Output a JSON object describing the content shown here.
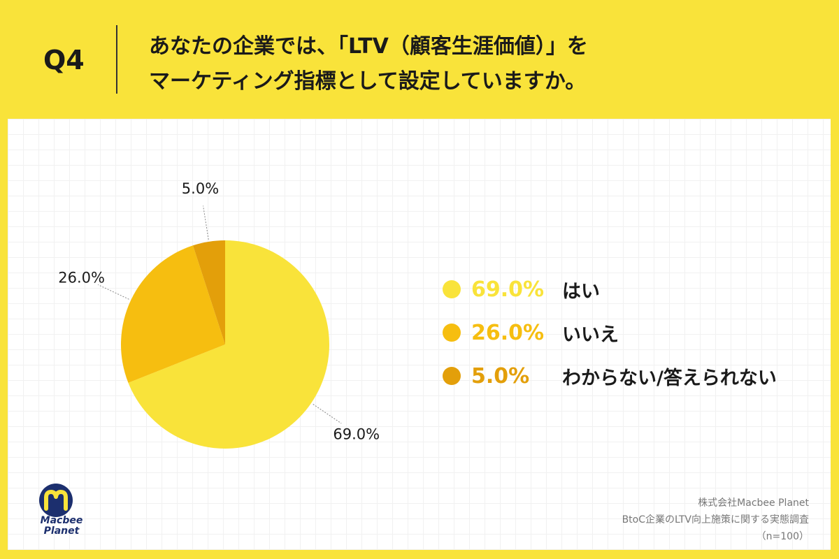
{
  "header": {
    "q_label": "Q4",
    "question_line1": "あなたの企業では、「LTV（顧客生涯価値）」を",
    "question_line2": "マーケティング指標として設定していますか。"
  },
  "chart_data": {
    "type": "pie",
    "title": "あなたの企業では、「LTV（顧客生涯価値）」をマーケティング指標として設定していますか。",
    "start": "top",
    "direction": "clockwise",
    "slices": [
      {
        "label": "はい",
        "value": 69.0,
        "display": "69.0%",
        "color": "#F9E33A"
      },
      {
        "label": "いいえ",
        "value": 26.0,
        "display": "26.0%",
        "color": "#F6BE10"
      },
      {
        "label": "わからない/答えられない",
        "value": 5.0,
        "display": "5.0%",
        "color": "#E39F0A"
      }
    ],
    "legend_position": "right"
  },
  "footer": {
    "company": "株式会社Macbee Planet",
    "survey": "BtoC企業のLTV向上施策に関する実態調査",
    "sample": "（n=100）"
  },
  "logo": {
    "line1": "Macbee",
    "line2": "Planet",
    "navy": "#1C2F6E",
    "yellow": "#F9E33A"
  }
}
